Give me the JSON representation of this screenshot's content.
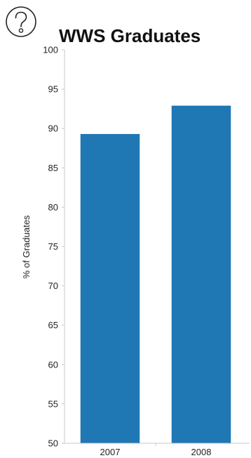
{
  "help": {
    "icon": "question-circle-icon"
  },
  "chart_data": {
    "type": "bar",
    "title": "WWS Graduates",
    "xlabel": "",
    "ylabel": "% of Graduates",
    "categories": [
      "2007",
      "2008"
    ],
    "values": [
      89.3,
      92.9
    ],
    "ylim": [
      50,
      100
    ],
    "yticks": [
      50,
      55,
      60,
      65,
      70,
      75,
      80,
      85,
      90,
      95,
      100
    ],
    "grid": false,
    "bar_color": "#1f77b4",
    "axis_color": "#c8c8c8"
  }
}
